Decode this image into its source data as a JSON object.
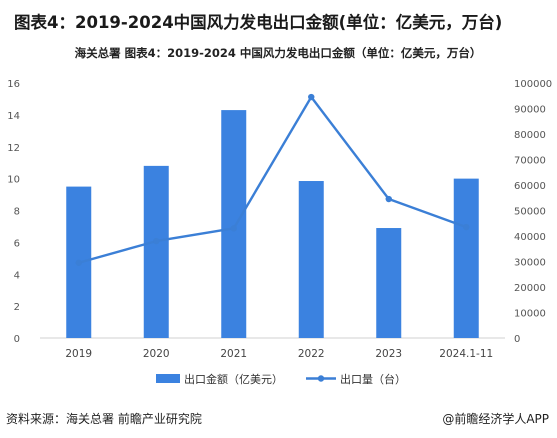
{
  "page": {
    "title": "图表4：2019-2024中国风力发电出口金额(单位：亿美元，万台)",
    "source": "资料来源：海关总署 前瞻产业研究院",
    "brand": "@前瞻经济学人APP"
  },
  "chart_data": {
    "type": "bar",
    "title": "海关总署  图表4：2019-2024 中国风力发电出口金额（单位：亿美元，万台）",
    "categories": [
      "2019",
      "2020",
      "2021",
      "2022",
      "2023",
      "2024.1-11"
    ],
    "series": [
      {
        "name": "出口金额（亿美元）",
        "type": "bar",
        "axis": "left",
        "color": "#3b82e0",
        "values": [
          9.5,
          10.8,
          14.3,
          9.85,
          6.9,
          10.0
        ]
      },
      {
        "name": "出口量（台）",
        "type": "line",
        "axis": "right",
        "color": "#3b7fd6",
        "values": [
          29500,
          38000,
          43000,
          94500,
          54500,
          43500
        ]
      }
    ],
    "ylim_left": [
      0,
      16
    ],
    "yticks_left": [
      "0",
      "2",
      "4",
      "6",
      "8",
      "10",
      "12",
      "14",
      "16"
    ],
    "ylim_right": [
      0,
      100000
    ],
    "yticks_right": [
      "0",
      "10000",
      "20000",
      "30000",
      "40000",
      "50000",
      "60000",
      "70000",
      "80000",
      "90000",
      "100000"
    ],
    "legend_position": "bottom",
    "grid": false
  }
}
